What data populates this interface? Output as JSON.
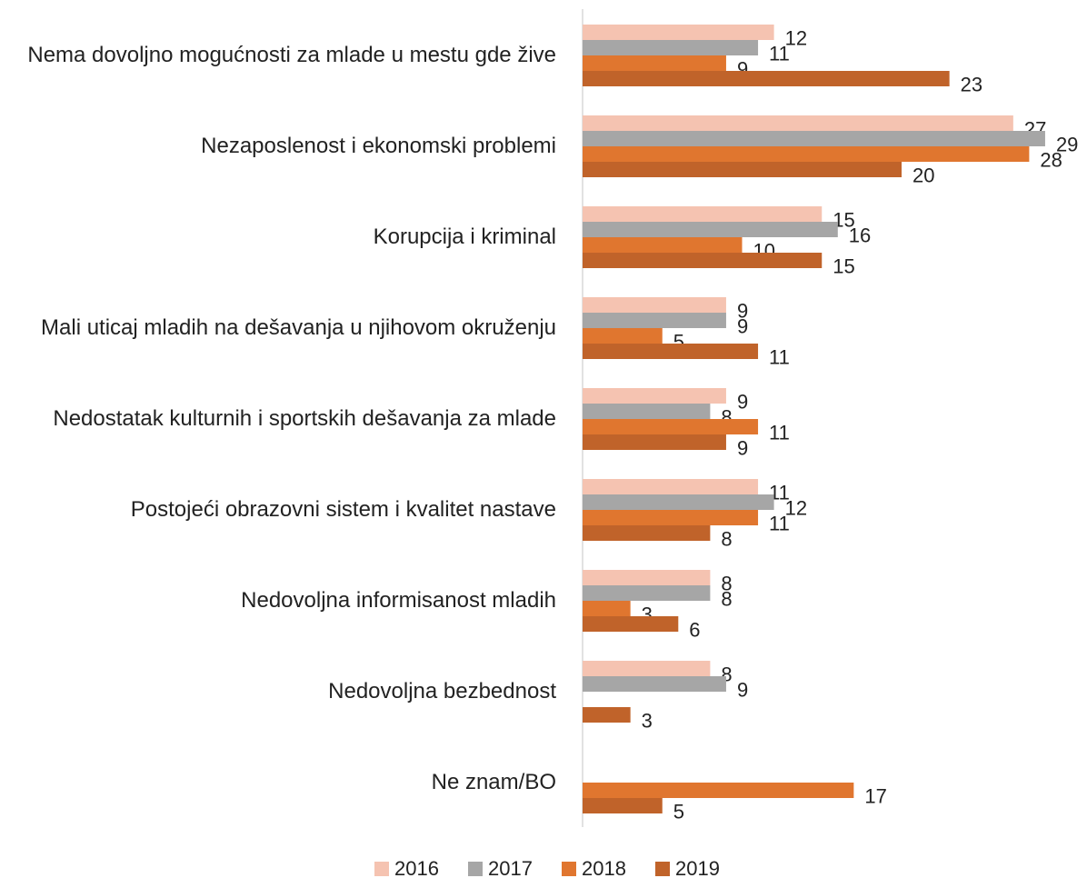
{
  "chart_data": {
    "type": "hbar",
    "categories": [
      "Nema dovoljno mogućnosti za mlade u mestu gde žive",
      "Nezaposlenost i ekonomski problemi",
      "Korupcija i kriminal",
      "Mali uticaj mladih na dešavanja u njihovom okruženju",
      "Nedostatak kulturnih i sportskih dešavanja za mlade",
      "Postojeći obrazovni sistem i kvalitet nastave",
      "Nedovoljna informisanost mladih",
      "Nedovoljna bezbednost",
      "Ne znam/BO"
    ],
    "series": [
      {
        "name": "2016",
        "color": "#f5c3b1",
        "values": [
          12,
          27,
          15,
          9,
          9,
          11,
          8,
          8,
          null
        ]
      },
      {
        "name": "2017",
        "color": "#a6a6a6",
        "values": [
          11,
          29,
          16,
          9,
          8,
          12,
          8,
          9,
          null
        ]
      },
      {
        "name": "2018",
        "color": "#e0762f",
        "values": [
          9,
          28,
          10,
          5,
          11,
          11,
          3,
          null,
          17
        ]
      },
      {
        "name": "2019",
        "color": "#c0632a",
        "values": [
          23,
          20,
          15,
          11,
          9,
          8,
          6,
          3,
          5
        ]
      }
    ],
    "legend": "bottom"
  }
}
